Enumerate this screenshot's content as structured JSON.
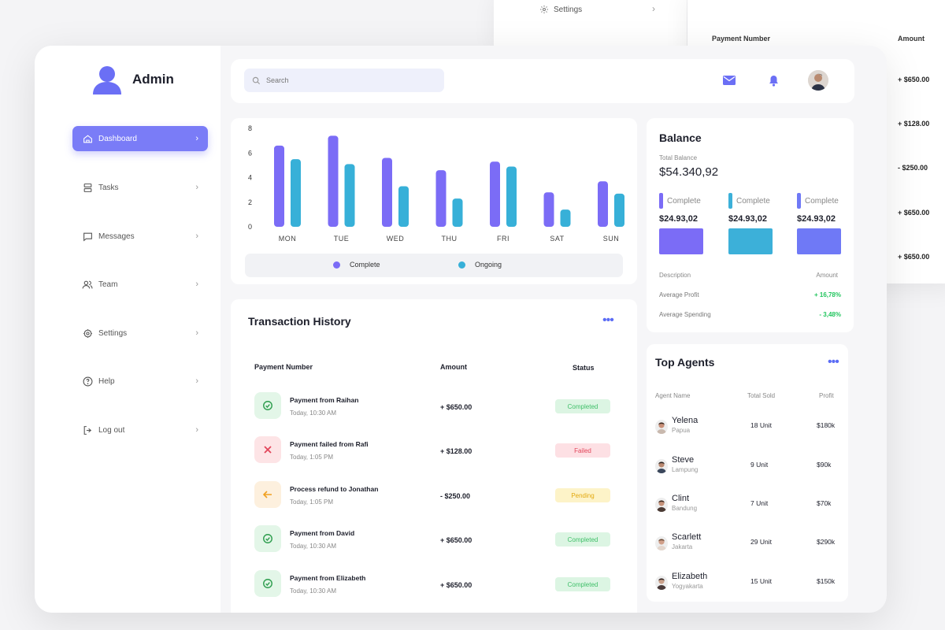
{
  "ghost": {
    "settings_label": "Settings",
    "col_payment": "Payment Number",
    "col_amount": "Amount",
    "amounts": [
      "+ $650.00",
      "+ $128.00",
      "- $250.00",
      "+ $650.00",
      "+ $650.00"
    ]
  },
  "brand": {
    "name": "Admin"
  },
  "sidebar": {
    "items": [
      {
        "label": "Dashboard",
        "icon": "home-icon",
        "active": true
      },
      {
        "label": "Tasks",
        "icon": "tasks-icon"
      },
      {
        "label": "Messages",
        "icon": "message-icon"
      },
      {
        "label": "Team",
        "icon": "team-icon"
      },
      {
        "label": "Settings",
        "icon": "gear-icon"
      },
      {
        "label": "Help",
        "icon": "help-icon"
      },
      {
        "label": "Log out",
        "icon": "logout-icon"
      }
    ]
  },
  "search": {
    "placeholder": "Search"
  },
  "colors": {
    "accent": "#7a7cf7",
    "complete": "#7b6cf6",
    "ongoing": "#37b0d8",
    "positive": "#22c55e"
  },
  "chart_data": {
    "type": "bar",
    "categories": [
      "MON",
      "TUE",
      "WED",
      "THU",
      "FRI",
      "SAT",
      "SUN"
    ],
    "series": [
      {
        "name": "Complete",
        "values": [
          6.6,
          7.4,
          5.6,
          4.6,
          5.3,
          2.8,
          3.7
        ]
      },
      {
        "name": "Ongoing",
        "values": [
          5.5,
          5.1,
          3.3,
          2.3,
          4.9,
          1.4,
          2.7
        ]
      }
    ],
    "ylim": [
      0,
      8
    ],
    "yticks": [
      "8",
      "6",
      "4",
      "2",
      "0"
    ],
    "legend": "bottom"
  },
  "balance": {
    "title": "Balance",
    "total_label": "Total Balance",
    "total_value": "$54.340,92",
    "columns": [
      {
        "label": "Complete",
        "amount": "$24.93,02",
        "color": "#7b6cf6"
      },
      {
        "label": "Complete",
        "amount": "$24.93,02",
        "color": "#3cb0d9"
      },
      {
        "label": "Complete",
        "amount": "$24.93,02",
        "color": "#6f79f6"
      }
    ],
    "desc_label": "Description",
    "amount_label": "Amount",
    "rows": [
      {
        "label": "Average Profit",
        "value": "+ 16,78%"
      },
      {
        "label": "Average Spending",
        "value": "- 3,48%"
      }
    ]
  },
  "transactions": {
    "title": "Transaction History",
    "col_payment": "Payment Number",
    "col_amount": "Amount",
    "col_status": "Status",
    "rows": [
      {
        "name": "Payment from Raihan",
        "time": "Today, 10:30 AM",
        "amount": "+ $650.00",
        "status": "Completed",
        "kind": "completed"
      },
      {
        "name": "Payment failed from Rafi",
        "time": "Today, 1:05 PM",
        "amount": "+ $128.00",
        "status": "Failed",
        "kind": "failed"
      },
      {
        "name": "Process refund to Jonathan",
        "time": "Today, 1:05 PM",
        "amount": "- $250.00",
        "status": "Pending",
        "kind": "pending"
      },
      {
        "name": "Payment from David",
        "time": "Today, 10:30 AM",
        "amount": "+ $650.00",
        "status": "Completed",
        "kind": "completed"
      },
      {
        "name": "Payment from Elizabeth",
        "time": "Today, 10:30 AM",
        "amount": "+ $650.00",
        "status": "Completed",
        "kind": "completed"
      }
    ]
  },
  "agents": {
    "title": "Top Agents",
    "col_name": "Agent Name",
    "col_sold": "Total Sold",
    "col_profit": "Profit",
    "rows": [
      {
        "name": "Yelena",
        "city": "Papua",
        "sold": "18 Unit",
        "profit": "$180k"
      },
      {
        "name": "Steve",
        "city": "Lampung",
        "sold": "9 Unit",
        "profit": "$90k"
      },
      {
        "name": "Clint",
        "city": "Bandung",
        "sold": "7 Unit",
        "profit": "$70k"
      },
      {
        "name": "Scarlett",
        "city": "Jakarta",
        "sold": "29 Unit",
        "profit": "$290k"
      },
      {
        "name": "Elizabeth",
        "city": "Yogyakarta",
        "sold": "15 Unit",
        "profit": "$150k"
      }
    ]
  }
}
